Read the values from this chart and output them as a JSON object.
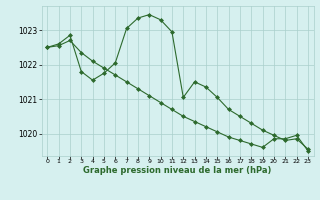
{
  "line1_x": [
    0,
    1,
    2,
    3,
    4,
    5,
    6,
    7,
    8,
    9,
    10,
    11,
    12,
    13,
    14,
    15,
    16,
    17,
    18,
    19,
    20,
    21,
    22,
    23
  ],
  "line1_y": [
    1022.5,
    1022.6,
    1022.85,
    1021.8,
    1021.55,
    1021.75,
    1022.05,
    1023.05,
    1023.35,
    1023.45,
    1023.3,
    1022.95,
    1021.05,
    1021.5,
    1021.35,
    1021.05,
    1020.7,
    1020.5,
    1020.3,
    1020.1,
    1019.95,
    1019.8,
    1019.85,
    1019.55
  ],
  "line2_x": [
    0,
    1,
    2,
    3,
    4,
    5,
    6,
    7,
    8,
    9,
    10,
    11,
    12,
    13,
    14,
    15,
    16,
    17,
    18,
    19,
    20,
    21,
    22,
    23
  ],
  "line2_y": [
    1022.5,
    1022.55,
    1022.7,
    1022.35,
    1022.1,
    1021.9,
    1021.7,
    1021.5,
    1021.3,
    1021.1,
    1020.9,
    1020.7,
    1020.5,
    1020.35,
    1020.2,
    1020.05,
    1019.9,
    1019.8,
    1019.7,
    1019.6,
    1019.85,
    1019.85,
    1019.95,
    1019.5
  ],
  "line_color": "#2d6a2d",
  "marker": "D",
  "marker_size": 2,
  "bg_color": "#d6f0ef",
  "grid_color": "#aacfcc",
  "xlabel": "Graphe pression niveau de la mer (hPa)",
  "ylim": [
    1019.35,
    1023.7
  ],
  "yticks": [
    1020,
    1021,
    1022,
    1023
  ],
  "xticks": [
    0,
    1,
    2,
    3,
    4,
    5,
    6,
    7,
    8,
    9,
    10,
    11,
    12,
    13,
    14,
    15,
    16,
    17,
    18,
    19,
    20,
    21,
    22,
    23
  ]
}
